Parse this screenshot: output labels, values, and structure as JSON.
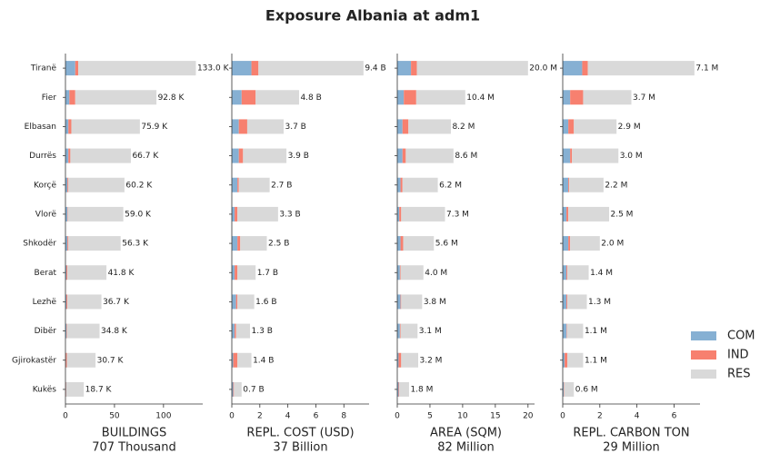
{
  "chart_data": {
    "type": "bar",
    "title": "Exposure Albania at adm1",
    "categories": [
      "Tiranë",
      "Fier",
      "Elbasan",
      "Durrës",
      "Korçë",
      "Vlorë",
      "Shkodër",
      "Berat",
      "Lezhë",
      "Dibër",
      "Gjirokastër",
      "Kukës"
    ],
    "legend": [
      {
        "name": "COM",
        "color": "#86b0d3"
      },
      {
        "name": "IND",
        "color": "#f7806f"
      },
      {
        "name": "RES",
        "color": "#d9d9d9"
      }
    ],
    "panels": [
      {
        "xlabel": "BUILDINGS",
        "xlabel_total": "707 Thousand",
        "xlim": [
          0,
          140
        ],
        "xticks": [
          0,
          50,
          100
        ],
        "series": [
          {
            "values": [
              10,
              4,
              3,
              3,
              2,
              2,
              2,
              1,
              1,
              1,
              0.5,
              0.5
            ]
          },
          {
            "values": [
              3,
              6,
              3,
              2,
              1,
              0.5,
              1,
              1,
              1,
              0.5,
              1,
              0.3
            ]
          },
          {
            "values": [
              120,
              82.8,
              69.9,
              61.7,
              57.2,
              56.5,
              53.3,
              39.8,
              34.7,
              33.3,
              29.2,
              17.9
            ]
          }
        ],
        "totals": [
          133.0,
          92.8,
          75.9,
          66.7,
          60.2,
          59.0,
          56.3,
          41.8,
          36.7,
          34.8,
          30.7,
          18.7
        ],
        "total_labels": [
          "133.0 K",
          "92.8 K",
          "75.9 K",
          "66.7 K",
          "60.2 K",
          "59.0 K",
          "56.3 K",
          "41.8 K",
          "36.7 K",
          "34.8 K",
          "30.7 K",
          "18.7 K"
        ]
      },
      {
        "xlabel": "REPL. COST (USD)",
        "xlabel_total": "37 Billion",
        "xlim": [
          0,
          9.8
        ],
        "xticks": [
          0,
          2,
          4,
          6,
          8
        ],
        "series": [
          {
            "values": [
              1.4,
              0.7,
              0.5,
              0.5,
              0.4,
              0.2,
              0.4,
              0.2,
              0.3,
              0.2,
              0.1,
              0.1
            ]
          },
          {
            "values": [
              0.5,
              1.0,
              0.6,
              0.3,
              0.1,
              0.2,
              0.2,
              0.2,
              0.1,
              0.1,
              0.3,
              0.05
            ]
          },
          {
            "values": [
              7.5,
              3.1,
              2.6,
              3.1,
              2.2,
              2.9,
              1.9,
              1.3,
              1.2,
              1.0,
              1.0,
              0.55
            ]
          }
        ],
        "totals": [
          9.4,
          4.8,
          3.7,
          3.9,
          2.7,
          3.3,
          2.5,
          1.7,
          1.6,
          1.3,
          1.4,
          0.7
        ],
        "total_labels": [
          "9.4 B",
          "4.8 B",
          "3.7 B",
          "3.9 B",
          "2.7 B",
          "3.3 B",
          "2.5 B",
          "1.7 B",
          "1.6 B",
          "1.3 B",
          "1.4 B",
          "0.7 B"
        ]
      },
      {
        "xlabel": "AREA (SQM)",
        "xlabel_total": "82 Million",
        "xlim": [
          0,
          21
        ],
        "xticks": [
          0,
          5,
          10,
          15,
          20
        ],
        "series": [
          {
            "values": [
              2.1,
              1.0,
              0.8,
              0.8,
              0.5,
              0.3,
              0.5,
              0.4,
              0.5,
              0.4,
              0.2,
              0.2
            ]
          },
          {
            "values": [
              0.9,
              1.9,
              0.9,
              0.5,
              0.3,
              0.3,
              0.4,
              0.1,
              0.1,
              0.1,
              0.4,
              0.1
            ]
          },
          {
            "values": [
              17.0,
              7.5,
              6.5,
              7.3,
              5.4,
              6.7,
              4.7,
              3.5,
              3.2,
              2.6,
              2.6,
              1.5
            ]
          }
        ],
        "totals": [
          20.0,
          10.4,
          8.2,
          8.6,
          6.2,
          7.3,
          5.6,
          4.0,
          3.8,
          3.1,
          3.2,
          1.8
        ],
        "total_labels": [
          "20.0 M",
          "10.4 M",
          "8.2 M",
          "8.6 M",
          "6.2 M",
          "7.3 M",
          "5.6 M",
          "4.0 M",
          "3.8 M",
          "3.1 M",
          "3.2 M",
          "1.8 M"
        ]
      },
      {
        "xlabel": "REPL. CARBON TON",
        "xlabel_total": "29 Million",
        "xlim": [
          0,
          7.4
        ],
        "xticks": [
          0,
          2,
          4,
          6
        ],
        "series": [
          {
            "values": [
              1.05,
              0.4,
              0.3,
              0.4,
              0.3,
              0.2,
              0.3,
              0.2,
              0.2,
              0.2,
              0.1,
              0.05
            ]
          },
          {
            "values": [
              0.3,
              0.7,
              0.3,
              0.1,
              0.05,
              0.1,
              0.1,
              0.05,
              0.05,
              0.02,
              0.15,
              0.02
            ]
          },
          {
            "values": [
              5.75,
              2.6,
              2.3,
              2.5,
              1.85,
              2.2,
              1.6,
              1.15,
              1.05,
              0.88,
              0.85,
              0.53
            ]
          }
        ],
        "totals": [
          7.1,
          3.7,
          2.9,
          3.0,
          2.2,
          2.5,
          2.0,
          1.4,
          1.3,
          1.1,
          1.1,
          0.6
        ],
        "total_labels": [
          "7.1 M",
          "3.7 M",
          "2.9 M",
          "3.0 M",
          "2.2 M",
          "2.5 M",
          "2.0 M",
          "1.4 M",
          "1.3 M",
          "1.1 M",
          "1.1 M",
          "0.6 M"
        ]
      }
    ]
  }
}
